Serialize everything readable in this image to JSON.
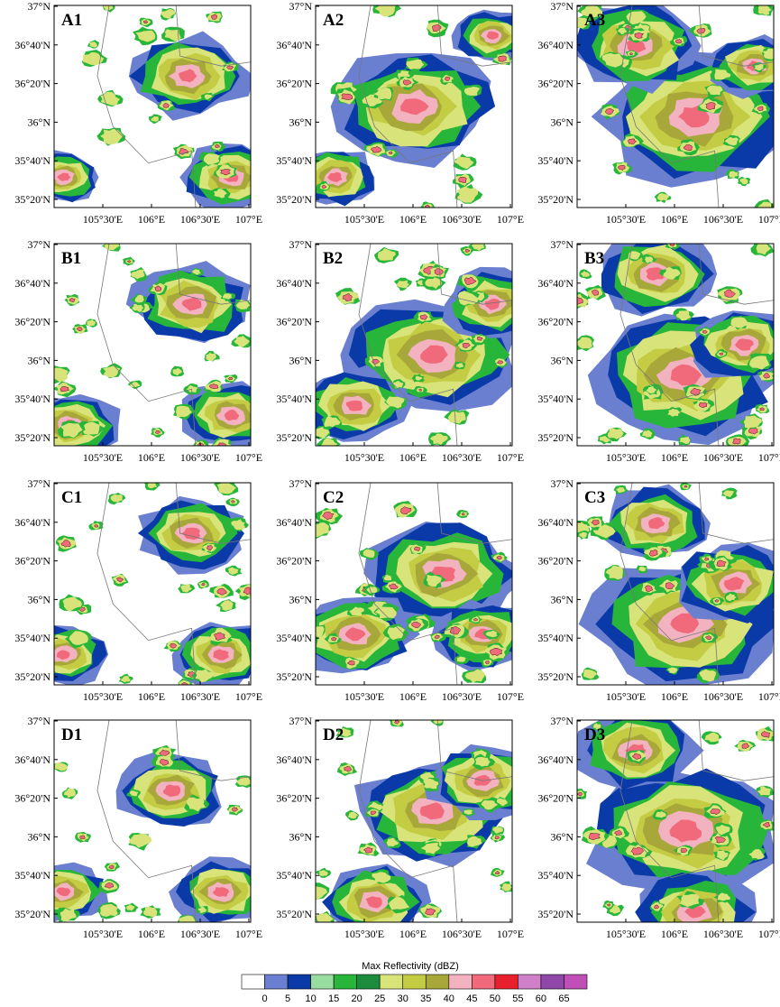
{
  "panels": [
    {
      "id": "A1"
    },
    {
      "id": "A2"
    },
    {
      "id": "A3"
    },
    {
      "id": "B1"
    },
    {
      "id": "B2"
    },
    {
      "id": "B3"
    },
    {
      "id": "C1"
    },
    {
      "id": "C2"
    },
    {
      "id": "C3"
    },
    {
      "id": "D1"
    },
    {
      "id": "D2"
    },
    {
      "id": "D3"
    }
  ],
  "lat_labels": [
    "37°N",
    "36°40'N",
    "36°20'N",
    "36°N",
    "35°40'N",
    "35°20'N"
  ],
  "lon_labels": [
    "105°30'E",
    "106°E",
    "106°30'E",
    "107°E"
  ],
  "colorbar": {
    "title": "Max Reflectivity  (dBZ)",
    "levels": [
      "0",
      "5",
      "10",
      "15",
      "20",
      "25",
      "30",
      "35",
      "40",
      "45",
      "50",
      "55",
      "60",
      "65"
    ],
    "colors": [
      "#ffffff",
      "#6a7fcf",
      "#0a3aa8",
      "#98dca0",
      "#27b63a",
      "#1c8c3c",
      "#d8e47a",
      "#c4cc44",
      "#a8a83a",
      "#f2b2c0",
      "#f06a7c",
      "#e8202c",
      "#d080c8",
      "#9048a8",
      "#c050b8"
    ]
  }
}
